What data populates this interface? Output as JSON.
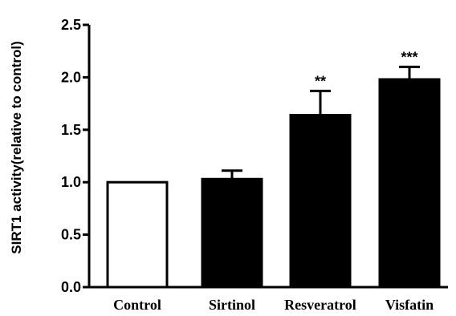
{
  "chart_data": {
    "type": "bar",
    "title": "",
    "xlabel": "",
    "ylabel": "SIRT1 activity(relative to control)",
    "ylim": [
      0,
      2.5
    ],
    "yticks": [
      "0.0",
      "0.5",
      "1.0",
      "1.5",
      "2.0",
      "2.5"
    ],
    "categories": [
      "Control",
      "Sirtinol",
      "Resveratrol",
      "Visfatin"
    ],
    "values": [
      1.0,
      1.03,
      1.64,
      1.98
    ],
    "errors": [
      0.0,
      0.08,
      0.23,
      0.12
    ],
    "significance": [
      "",
      "",
      "**",
      "***"
    ],
    "fills": [
      "#ffffff",
      "#000000",
      "#000000",
      "#000000"
    ],
    "grid": false
  }
}
